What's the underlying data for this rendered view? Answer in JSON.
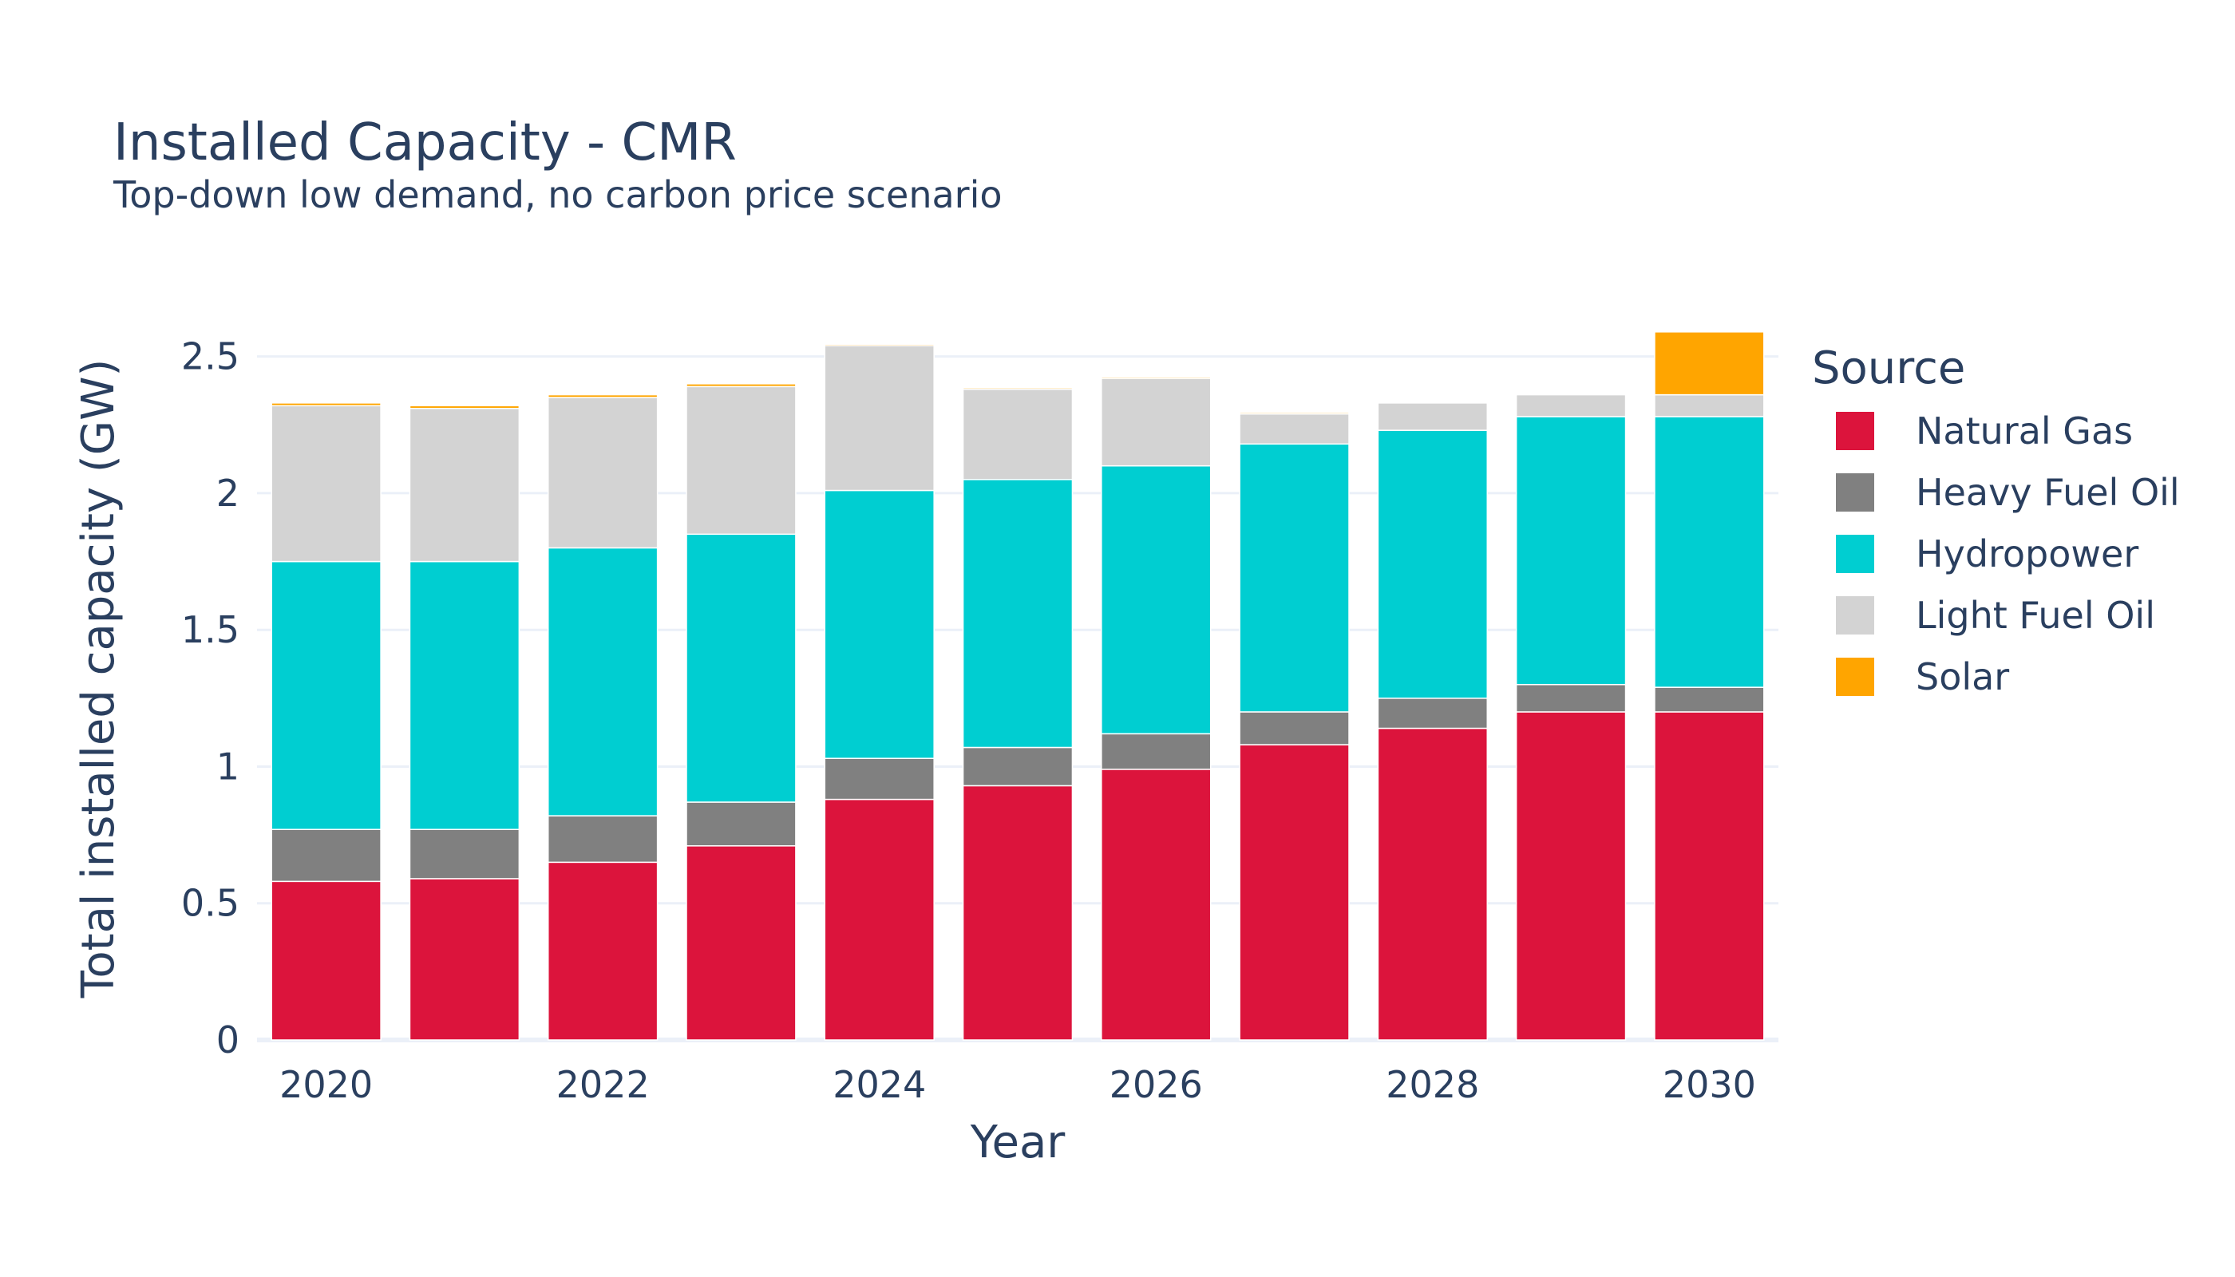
{
  "chart_data": {
    "type": "bar",
    "stacked": true,
    "title": "Installed Capacity - CMR",
    "subtitle": "Top-down low demand, no carbon price scenario",
    "xlabel": "Year",
    "ylabel": "Total installed capacity (GW)",
    "x": [
      2020,
      2021,
      2022,
      2023,
      2024,
      2025,
      2026,
      2027,
      2028,
      2029,
      2030
    ],
    "x_tick_labels": [
      "2020",
      "2022",
      "2024",
      "2026",
      "2028",
      "2030"
    ],
    "x_tick_values": [
      2020,
      2022,
      2024,
      2026,
      2028,
      2030
    ],
    "ylim": [
      0,
      2.68
    ],
    "y_tick_values": [
      0,
      0.5,
      1,
      1.5,
      2,
      2.5
    ],
    "y_tick_labels": [
      "0",
      "0.5",
      "1",
      "1.5",
      "2",
      "2.5"
    ],
    "grid": true,
    "legend_title": "Source",
    "legend_position": "right",
    "series": [
      {
        "name": "Natural Gas",
        "color": "#dc143c",
        "values": [
          0.58,
          0.59,
          0.65,
          0.71,
          0.88,
          0.93,
          0.99,
          1.08,
          1.14,
          1.2,
          1.2
        ]
      },
      {
        "name": "Heavy Fuel Oil",
        "color": "#808080",
        "values": [
          0.19,
          0.18,
          0.17,
          0.16,
          0.15,
          0.14,
          0.13,
          0.12,
          0.11,
          0.1,
          0.09
        ]
      },
      {
        "name": "Hydropower",
        "color": "#00ced1",
        "values": [
          0.98,
          0.98,
          0.98,
          0.98,
          0.98,
          0.98,
          0.98,
          0.98,
          0.98,
          0.98,
          0.99
        ]
      },
      {
        "name": "Light Fuel Oil",
        "color": "#d3d3d3",
        "values": [
          0.57,
          0.56,
          0.55,
          0.54,
          0.53,
          0.33,
          0.32,
          0.11,
          0.1,
          0.08,
          0.08
        ]
      },
      {
        "name": "Solar",
        "color": "#ffa500",
        "values": [
          0.01,
          0.01,
          0.01,
          0.01,
          0.005,
          0.005,
          0.005,
          0.005,
          0,
          0,
          0.23
        ]
      }
    ]
  },
  "style": {
    "grid_color": "#ebf0f8",
    "bar_outline_color": "#ffffff",
    "text_color": "#2a3f5f"
  }
}
